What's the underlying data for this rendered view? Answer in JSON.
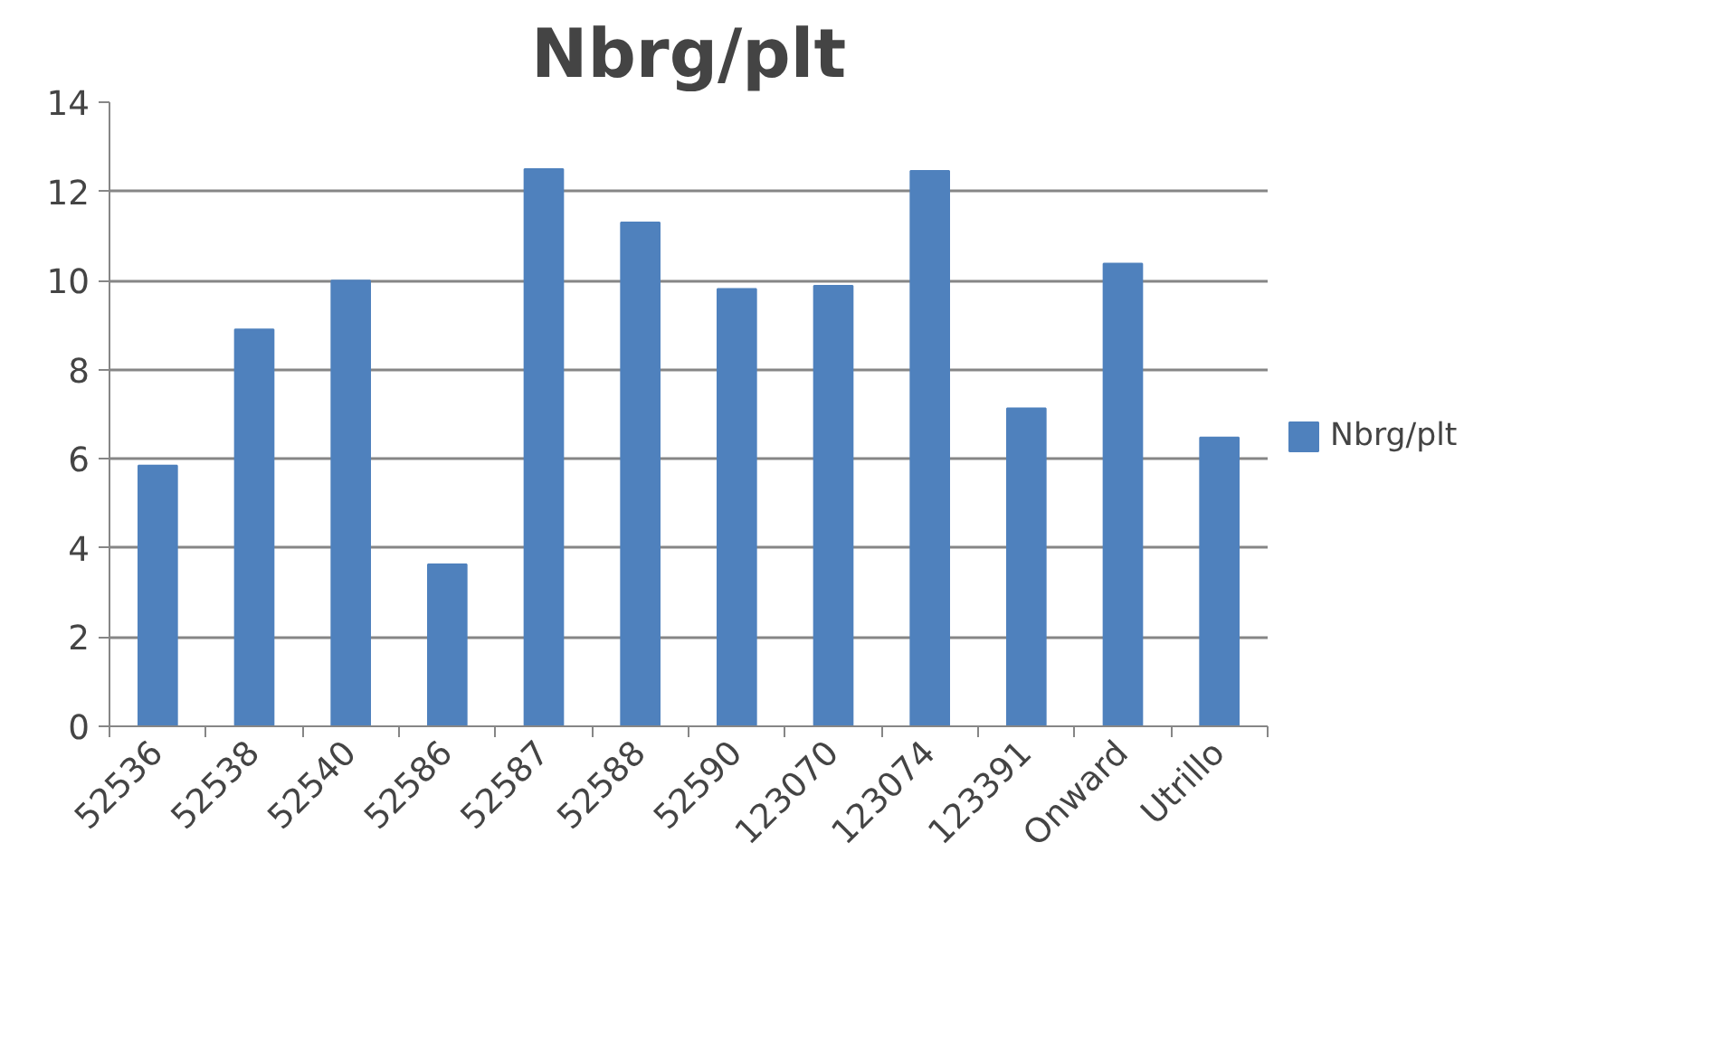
{
  "chart_data": {
    "type": "bar",
    "title": "Nbrg/plt",
    "categories": [
      "52536",
      "52538",
      "52540",
      "52586",
      "52587",
      "52588",
      "52590",
      "123070",
      "123074",
      "123391",
      "Onward",
      "Utrillo"
    ],
    "series": [
      {
        "name": "Nbrg/plt",
        "color": "#4f81bd",
        "values": [
          5.85,
          8.9,
          10.0,
          3.63,
          12.5,
          11.3,
          9.81,
          9.88,
          12.46,
          7.13,
          10.38,
          6.48
        ]
      }
    ],
    "ylim": [
      0,
      14
    ],
    "yticks": [
      0,
      2,
      4,
      6,
      8,
      10,
      12,
      14
    ],
    "grid": "y",
    "legend": "right"
  }
}
